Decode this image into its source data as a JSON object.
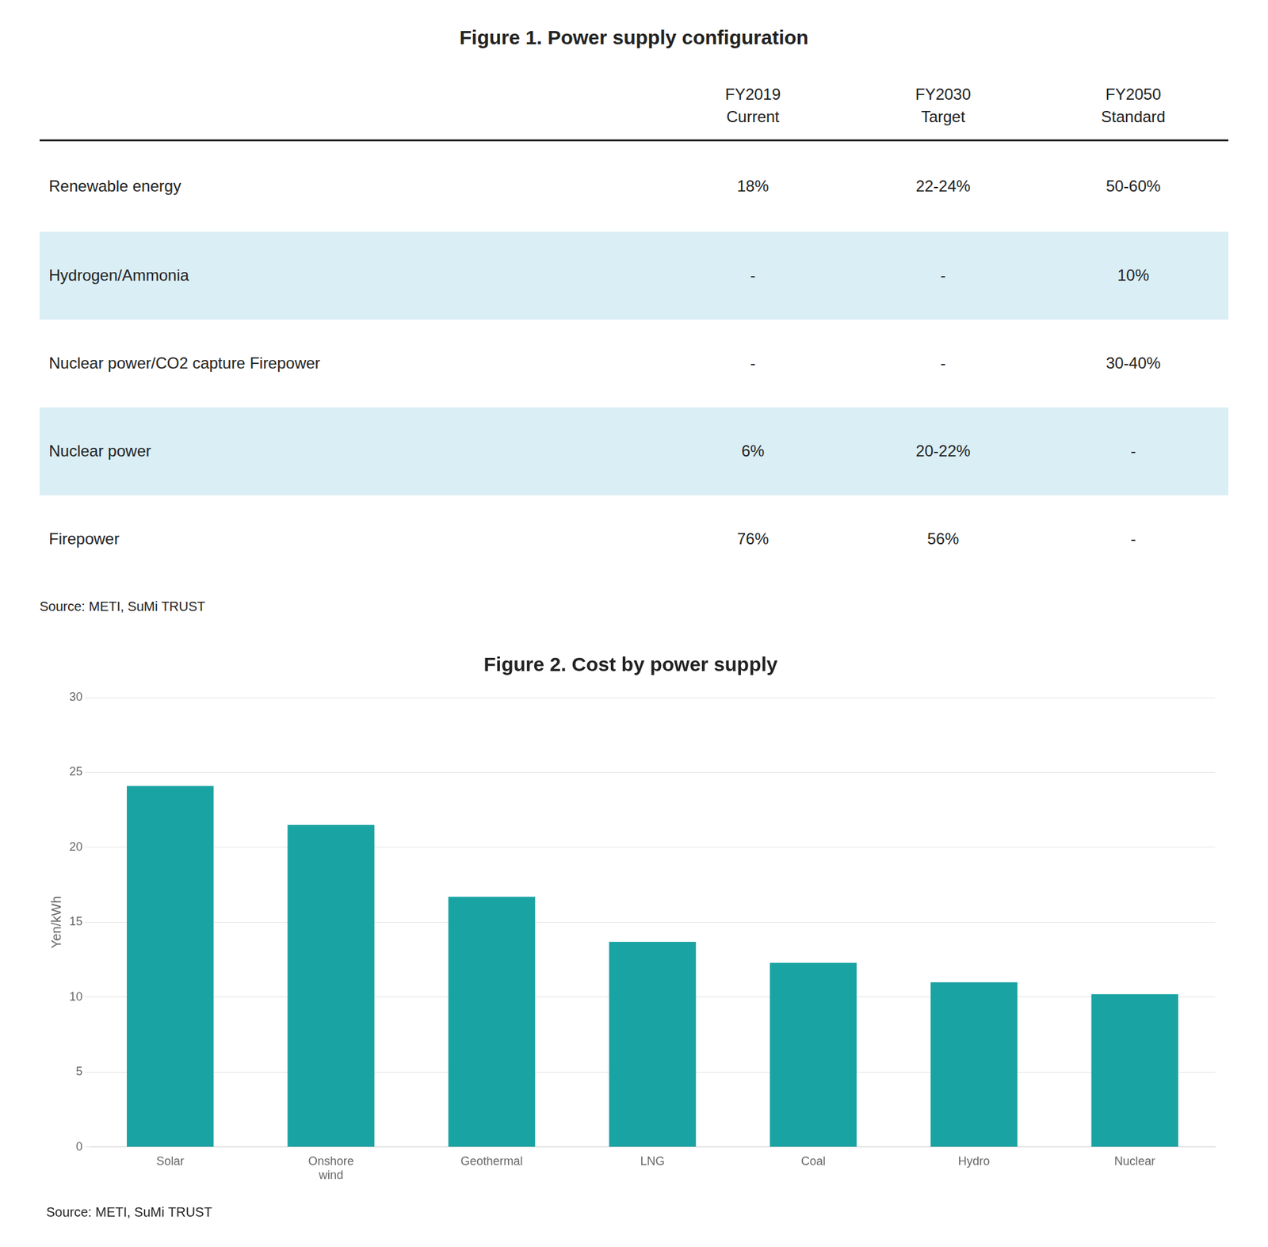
{
  "chart_data": [
    {
      "type": "table",
      "title": "Figure 1. Power supply configuration",
      "categories": [
        "Renewable energy",
        "Hydrogen/Ammonia",
        "Nuclear power/CO2 capture Firepower",
        "Nuclear power",
        "Firepower"
      ],
      "series": [
        {
          "name": "FY2019\nCurrent",
          "values": [
            "18%",
            "-",
            "-",
            "6%",
            "76%"
          ]
        },
        {
          "name": "FY2030\nTarget",
          "values": [
            "22-24%",
            "-",
            "-",
            "20-22%",
            "56%"
          ]
        },
        {
          "name": "FY2050\nStandard",
          "values": [
            "50-60%",
            "10%",
            "30-40%",
            "-",
            "-"
          ]
        }
      ],
      "annotations": [
        "Source: METI, SuMi TRUST"
      ]
    },
    {
      "type": "bar",
      "title": "Figure 2. Cost by power supply",
      "ylabel": "Yen/kWh",
      "categories": [
        "Solar",
        "Onshore\nwind",
        "Geothermal",
        "LNG",
        "Coal",
        "Hydro",
        "Nuclear"
      ],
      "values": [
        24.1,
        21.5,
        16.7,
        13.7,
        12.3,
        11.0,
        10.2
      ],
      "color": "#1aa3a3",
      "ylim": [
        0,
        30
      ],
      "yticks": [
        0,
        5,
        10,
        15,
        20,
        25,
        30
      ],
      "grid": true,
      "annotations": [
        "Source: METI, SuMi TRUST"
      ]
    }
  ]
}
